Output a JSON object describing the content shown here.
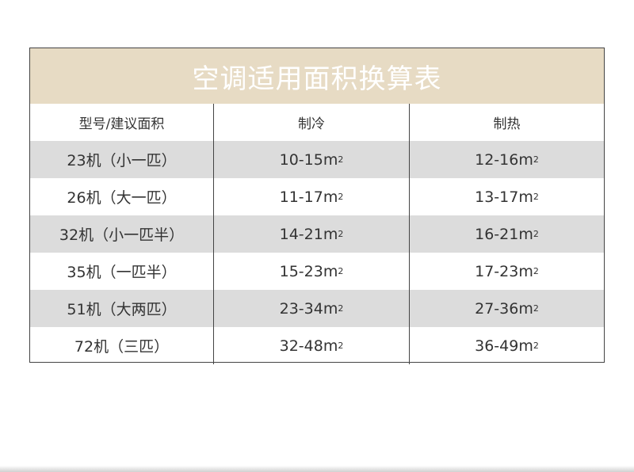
{
  "title": "空调适用面积换算表",
  "headers": [
    "型号/建议面积",
    "制冷",
    "制热"
  ],
  "unit": "m",
  "unit_sup": "2",
  "rows": [
    {
      "model": "23机（小一匹）",
      "cool": "10-15",
      "heat": "12-16",
      "shaded": true
    },
    {
      "model": "26机（大一匹）",
      "cool": "11-17",
      "heat": "13-17",
      "shaded": false
    },
    {
      "model": "32机（小一匹半）",
      "cool": "14-21",
      "heat": "16-21",
      "shaded": true
    },
    {
      "model": "35机（一匹半）",
      "cool": "15-23",
      "heat": "17-23",
      "shaded": false
    },
    {
      "model": "51机（大两匹）",
      "cool": "23-34",
      "heat": "27-36",
      "shaded": true
    },
    {
      "model": "72机（三匹）",
      "cool": "32-48",
      "heat": "36-49",
      "shaded": false
    }
  ],
  "colors": {
    "title_bg": "#e7dbc4",
    "shaded_row": "#dcdcdc"
  }
}
